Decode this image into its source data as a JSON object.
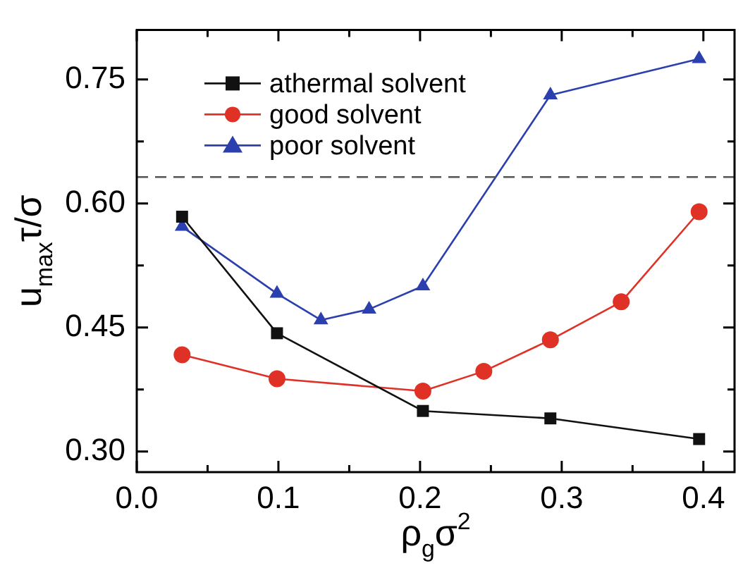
{
  "chart_data": {
    "type": "line",
    "xlabel": "ρ$_{g}$σ$^{2}$",
    "ylabel": "u$_{max}$τ/σ",
    "xlim": [
      0,
      0.422
    ],
    "ylim": [
      0.275,
      0.81
    ],
    "xticks": [
      {
        "value": 0,
        "label": "0.0"
      },
      {
        "value": 0.05,
        "label": null
      },
      {
        "value": 0.1,
        "label": "0.1"
      },
      {
        "value": 0.15,
        "label": null
      },
      {
        "value": 0.2,
        "label": "0.2"
      },
      {
        "value": 0.25,
        "label": null
      },
      {
        "value": 0.3,
        "label": "0.3"
      },
      {
        "value": 0.35,
        "label": null
      },
      {
        "value": 0.4,
        "label": "0.4"
      }
    ],
    "yticks": [
      {
        "value": 0.3,
        "label": "0.30"
      },
      {
        "value": 0.375,
        "label": null
      },
      {
        "value": 0.45,
        "label": "0.45"
      },
      {
        "value": 0.525,
        "label": null
      },
      {
        "value": 0.6,
        "label": "0.60"
      },
      {
        "value": 0.675,
        "label": null
      },
      {
        "value": 0.75,
        "label": "0.75"
      }
    ],
    "grid": false,
    "legend": "top left",
    "line_style": "solid",
    "ref_lines": [
      {
        "axis": "y",
        "value": 0.632,
        "color": "#555555",
        "line_style": "dashed"
      }
    ],
    "series": [
      {
        "name": "athermal solvent",
        "color": "#111111",
        "marker": "square",
        "x": [
          0.032,
          0.099,
          0.202,
          0.292,
          0.397
        ],
        "values": [
          0.584,
          0.443,
          0.349,
          0.34,
          0.315
        ]
      },
      {
        "name": "good solvent",
        "color": "#e03127",
        "marker": "circle",
        "x": [
          0.032,
          0.099,
          0.202,
          0.245,
          0.292,
          0.342,
          0.397
        ],
        "values": [
          0.417,
          0.388,
          0.373,
          0.397,
          0.435,
          0.481,
          0.59
        ]
      },
      {
        "name": "poor solvent",
        "color": "#2b3fae",
        "marker": "triangle",
        "x": [
          0.032,
          0.099,
          0.13,
          0.164,
          0.202,
          0.292,
          0.397
        ],
        "values": [
          0.572,
          0.491,
          0.459,
          0.472,
          0.5,
          0.731,
          0.775
        ]
      }
    ]
  }
}
